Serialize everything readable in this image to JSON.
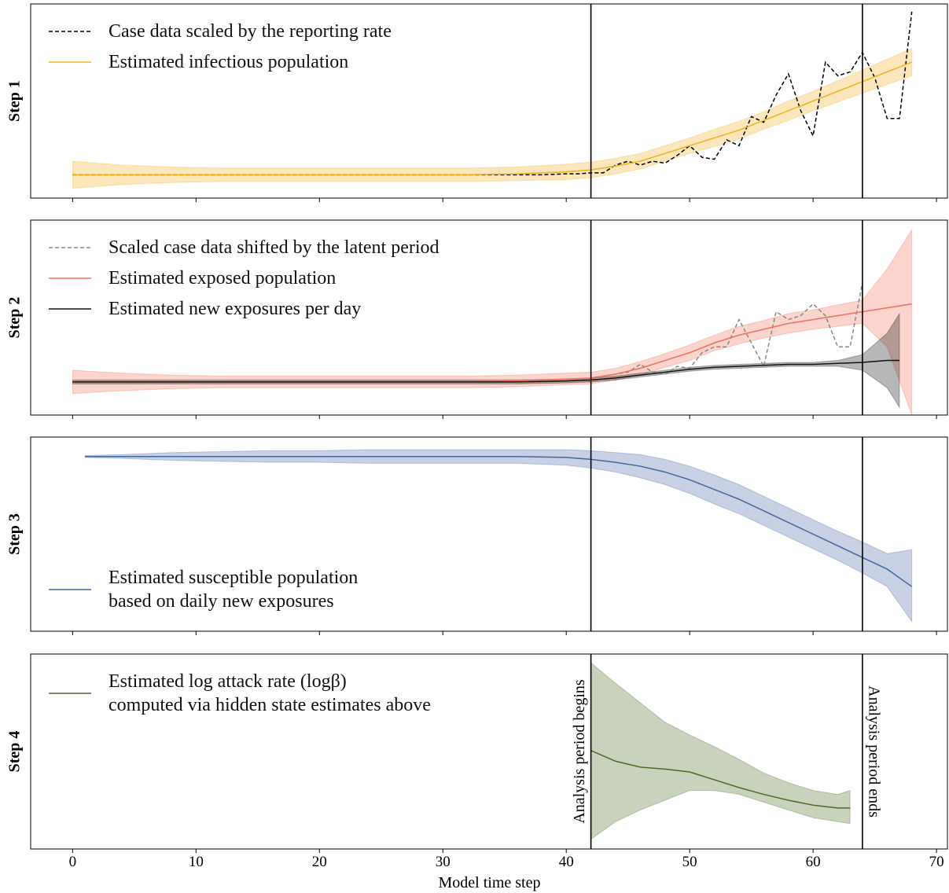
{
  "chart_data": [
    {
      "type": "line",
      "ylabel": "Step 1",
      "legend": "upper left",
      "xlim": [
        -3.4,
        70.95
      ],
      "ylim": [
        0,
        100
      ],
      "xticks": [
        0,
        10,
        20,
        30,
        40,
        50,
        60,
        70
      ],
      "vlines": [
        42,
        64
      ],
      "series": [
        {
          "name": "Case data scaled by the reporting rate",
          "color": "#000000",
          "style": "dashed",
          "x": [
            0,
            10,
            20,
            30,
            38,
            40,
            41,
            42,
            43,
            44,
            45,
            46,
            47,
            48,
            49,
            50,
            51,
            52,
            53,
            54,
            55,
            56,
            57,
            58,
            59,
            60,
            61,
            62,
            63,
            64,
            65,
            66,
            67,
            68
          ],
          "values": [
            12,
            12,
            12,
            12,
            12,
            12.5,
            12.5,
            13,
            13,
            17,
            19,
            17,
            19,
            18,
            22,
            27,
            21,
            20,
            30,
            27,
            42,
            39,
            53,
            64,
            45,
            32,
            70,
            63,
            65,
            75,
            62,
            41,
            41,
            96
          ]
        },
        {
          "name": "Estimated infectious population",
          "color": "#f2b01e",
          "style": "solid",
          "x": [
            0,
            4,
            8,
            12,
            16,
            20,
            24,
            28,
            32,
            36,
            40,
            42,
            44,
            46,
            48,
            50,
            52,
            54,
            56,
            58,
            60,
            62,
            64,
            66,
            68
          ],
          "values": [
            12,
            12,
            12,
            12,
            12,
            12,
            12,
            12,
            12,
            12.5,
            13.5,
            14.5,
            16.5,
            19,
            23,
            27,
            31,
            35,
            40,
            45,
            50,
            55,
            60,
            65,
            70
          ],
          "lower": [
            5,
            7,
            8,
            8.5,
            8.5,
            8.5,
            8.5,
            8.5,
            8.5,
            9,
            9.5,
            10.5,
            12.5,
            15,
            19,
            23,
            26.5,
            30.5,
            35.5,
            40,
            45,
            49.5,
            54,
            58.5,
            63
          ],
          "upper": [
            19,
            17,
            16,
            15.5,
            15.5,
            15.5,
            15.5,
            15.5,
            15.5,
            16,
            17.5,
            18.5,
            20.5,
            23,
            27,
            31,
            35.5,
            39.5,
            44.5,
            50,
            55,
            60.5,
            66,
            71.5,
            77
          ]
        }
      ]
    },
    {
      "type": "line",
      "ylabel": "Step 2",
      "legend": "upper left",
      "xlim": [
        -3.4,
        70.95
      ],
      "ylim": [
        0,
        100
      ],
      "xticks": [
        0,
        10,
        20,
        30,
        40,
        50,
        60,
        70
      ],
      "vlines": [
        42,
        64
      ],
      "series": [
        {
          "name": "Scaled case data shifted by the latent period",
          "color": "#888888",
          "style": "dashed",
          "x": [
            0,
            10,
            20,
            30,
            38,
            40,
            41,
            42,
            43,
            44,
            45,
            46,
            47,
            48,
            49,
            50,
            51,
            52,
            53,
            54,
            55,
            56,
            57,
            58,
            59,
            60,
            61,
            62,
            63,
            64
          ],
          "values": [
            17,
            17,
            17,
            17,
            17,
            17.5,
            18,
            19,
            20,
            21,
            22,
            26,
            22,
            21,
            25,
            24,
            32,
            35,
            35,
            49,
            37,
            25,
            53,
            49,
            51,
            57,
            51,
            35,
            35,
            68
          ]
        },
        {
          "name": "Estimated exposed population",
          "color": "#f07058",
          "style": "solid",
          "x": [
            0,
            4,
            8,
            12,
            16,
            20,
            24,
            28,
            32,
            36,
            40,
            42,
            44,
            46,
            48,
            50,
            52,
            54,
            56,
            58,
            60,
            62,
            64,
            66,
            68
          ],
          "values": [
            17,
            17,
            17,
            17,
            17,
            17,
            17,
            17,
            17,
            17.5,
            18.5,
            19,
            21,
            24,
            28,
            32,
            37,
            41,
            44,
            47,
            49,
            51,
            53,
            55,
            57
          ],
          "lower": [
            11,
            12.5,
            13.5,
            14,
            14,
            14,
            14,
            14,
            14,
            14.5,
            15.5,
            16,
            18,
            20.5,
            24.5,
            28,
            33,
            36.5,
            39.5,
            42,
            44,
            45.5,
            47,
            35,
            0
          ],
          "upper": [
            23,
            21.5,
            20.5,
            20,
            20,
            20,
            20,
            20,
            20,
            20.5,
            21.5,
            22,
            24,
            27.5,
            31.5,
            36,
            41,
            45.5,
            48.5,
            52,
            54,
            56.5,
            59,
            75,
            95
          ]
        },
        {
          "name": "Estimated new exposures per day",
          "color": "#111111",
          "style": "solid",
          "x": [
            0,
            4,
            8,
            12,
            16,
            20,
            24,
            28,
            32,
            36,
            40,
            42,
            44,
            46,
            48,
            50,
            52,
            54,
            56,
            58,
            60,
            62,
            64,
            66,
            67
          ],
          "values": [
            17,
            17,
            17,
            17,
            17,
            17,
            17,
            17,
            17,
            17,
            17.5,
            18,
            19,
            20.5,
            22,
            23.5,
            24.5,
            25,
            25.5,
            26,
            26,
            26.5,
            27,
            28,
            28
          ],
          "lower": [
            16,
            16,
            16,
            16,
            16,
            16,
            16,
            16,
            16,
            16,
            16.5,
            17,
            18,
            19.5,
            21,
            22.5,
            23.5,
            24,
            24.5,
            25,
            25,
            25,
            23,
            14,
            4
          ],
          "upper": [
            18,
            18,
            18,
            18,
            18,
            18,
            18,
            18,
            18,
            18,
            18.5,
            19,
            20,
            21.5,
            23,
            24.5,
            25.5,
            26,
            26.5,
            27,
            27,
            28,
            31,
            42,
            52
          ]
        }
      ]
    },
    {
      "type": "line",
      "ylabel": "Step 3",
      "legend": "lower left",
      "xlim": [
        -3.4,
        70.95
      ],
      "ylim": [
        0,
        100
      ],
      "xticks": [
        0,
        10,
        20,
        30,
        40,
        50,
        60,
        70
      ],
      "vlines": [
        42,
        64
      ],
      "series": [
        {
          "name": "Estimated susceptible population\nbased on daily new exposures",
          "color": "#4467a1",
          "style": "solid",
          "x": [
            1,
            4,
            8,
            12,
            16,
            20,
            24,
            28,
            32,
            36,
            40,
            42,
            44,
            46,
            48,
            50,
            52,
            54,
            56,
            58,
            60,
            62,
            64,
            66,
            68
          ],
          "values": [
            90,
            90,
            90,
            90,
            90,
            90,
            90,
            90,
            90,
            90,
            89.5,
            88.5,
            87,
            85,
            82,
            78,
            73,
            68,
            62,
            56,
            50,
            44,
            38,
            32,
            23
          ],
          "lower": [
            89.5,
            89,
            88,
            87.5,
            87,
            87,
            86.5,
            86.5,
            86.5,
            86.5,
            85.5,
            84,
            82,
            79,
            75.5,
            71,
            65.5,
            60.5,
            54.5,
            48.5,
            42.5,
            36.5,
            30,
            23,
            5
          ],
          "upper": [
            90.5,
            91,
            92,
            92.5,
            93,
            93,
            93.5,
            93.5,
            93.5,
            93.5,
            93.5,
            93,
            92,
            91,
            88.5,
            85,
            80.5,
            75.5,
            69.5,
            63.5,
            57.5,
            51.5,
            46,
            40,
            42
          ]
        }
      ]
    },
    {
      "type": "line",
      "ylabel": "Step 4",
      "legend": "upper left",
      "xlabel": "Model time step",
      "xlim": [
        -3.4,
        70.95
      ],
      "ylim": [
        0,
        100
      ],
      "xticks": [
        0,
        10,
        20,
        30,
        40,
        50,
        60,
        70
      ],
      "vlines": [
        42,
        64
      ],
      "vline_labels": [
        "Analysis period begins",
        "Analysis period ends"
      ],
      "series": [
        {
          "name": "Estimated log attack rate (logβ)\ncomputed via hidden state estimates above",
          "color": "#4d6b23",
          "style": "solid",
          "x": [
            42,
            44,
            46,
            48,
            50,
            52,
            54,
            56,
            58,
            60,
            62,
            63
          ],
          "values": [
            50.5,
            45,
            42,
            41,
            39.5,
            35.5,
            31.5,
            28,
            25,
            22.5,
            21,
            21
          ],
          "lower": [
            5,
            14,
            20,
            25,
            30,
            30,
            28,
            24,
            20,
            16,
            14,
            13
          ],
          "upper": [
            95.5,
            85,
            75,
            65,
            58.5,
            52.5,
            46,
            39,
            34,
            30,
            28,
            30
          ]
        }
      ]
    }
  ]
}
